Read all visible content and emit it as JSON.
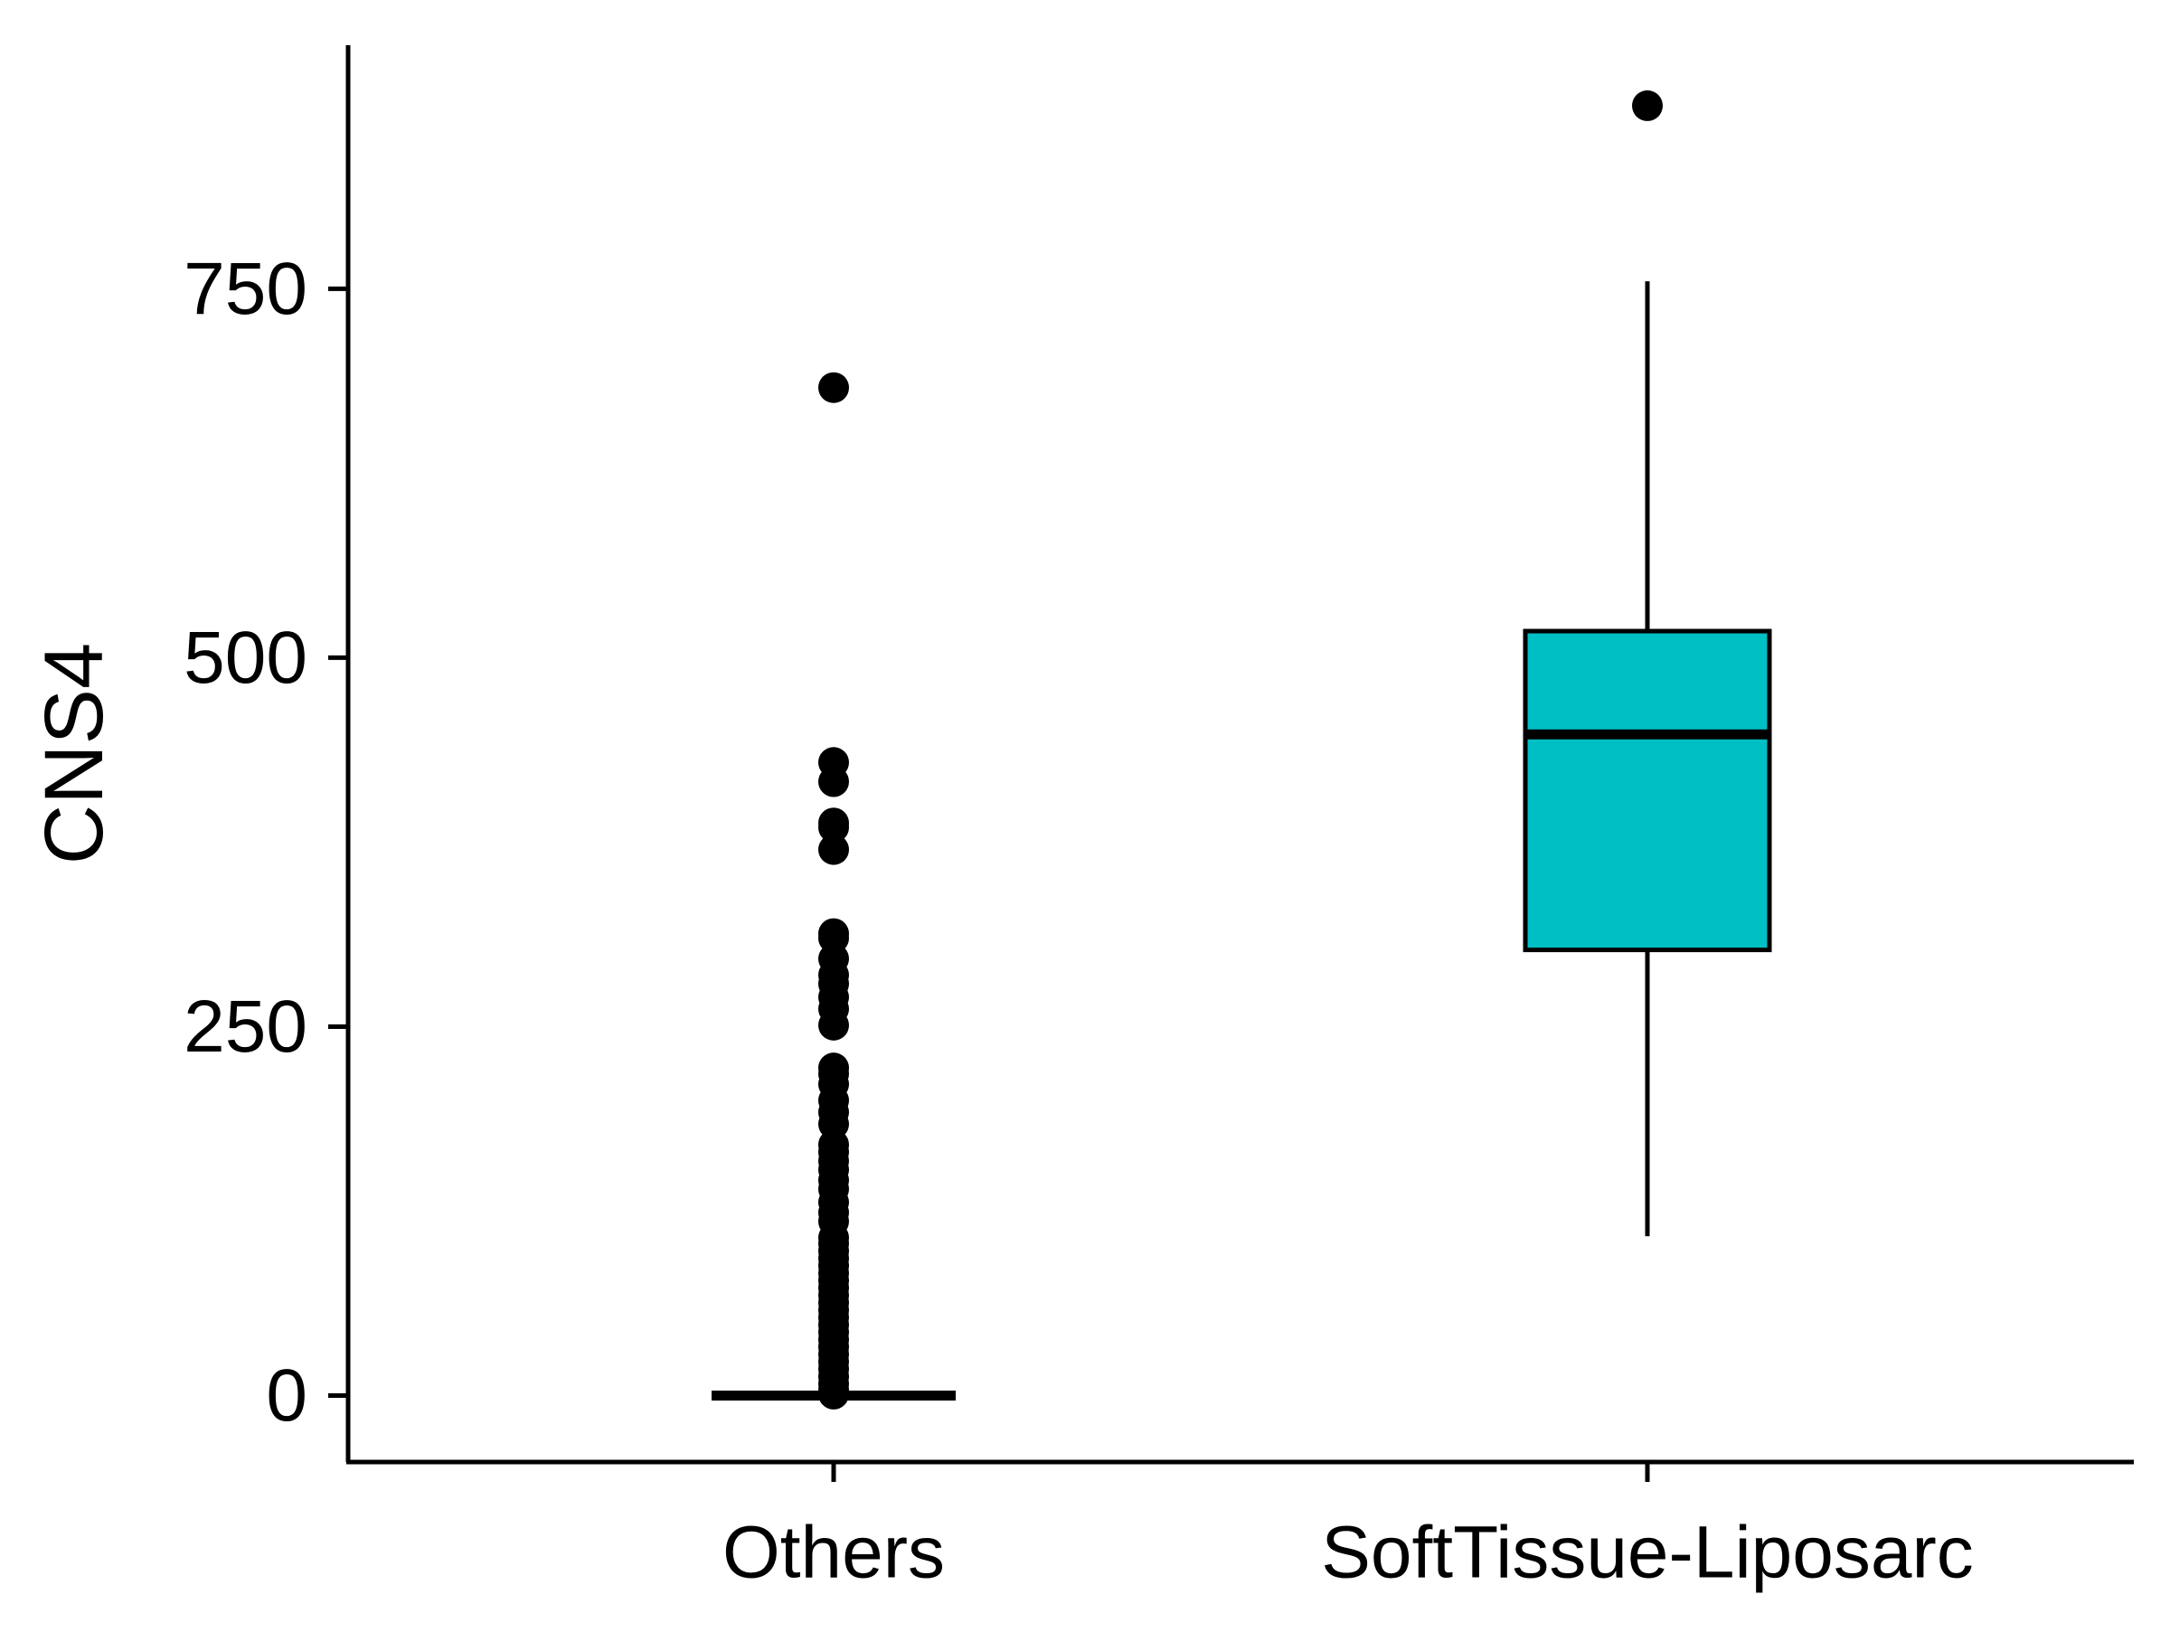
{
  "chart_data": {
    "type": "box",
    "title": "",
    "xlabel": "",
    "ylabel": "CNS4",
    "categories": [
      "Others",
      "SoftTissue-Liposarc"
    ],
    "yticks": [
      0,
      250,
      500,
      750
    ],
    "ytick_labels": [
      "0",
      "250",
      "500",
      "750"
    ],
    "ylim": [
      -45,
      915
    ],
    "grid": false,
    "legend": "none",
    "colors": {
      "box_fill_Others": "#ffffff",
      "box_fill_SoftTissue-Liposarc": "#00BFC4",
      "outline": "#000000"
    },
    "boxes": [
      {
        "category": "Others",
        "whisker_low": 0,
        "q1": 0,
        "median": 0,
        "q3": 0,
        "whisker_high": 0,
        "outliers": [
          683,
          429,
          416,
          388,
          385,
          370,
          313,
          310,
          296,
          285,
          279,
          270,
          262,
          251,
          222,
          218,
          211,
          200,
          192,
          184,
          170,
          165,
          159,
          153,
          146,
          140,
          131,
          124,
          118,
          107,
          103,
          98,
          93,
          88,
          83,
          78,
          73,
          68,
          63,
          58,
          53,
          48,
          43,
          38,
          33,
          28,
          23,
          18,
          13,
          8,
          4,
          1
        ]
      },
      {
        "category": "SoftTissue-Liposarc",
        "whisker_low": 108,
        "q1": 302,
        "median": 448,
        "q3": 518,
        "whisker_high": 755,
        "outliers": [
          874
        ]
      }
    ]
  }
}
